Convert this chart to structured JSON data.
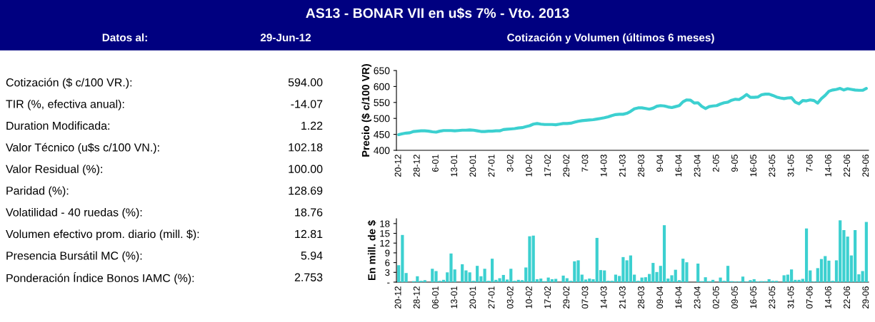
{
  "chart_data": [
    {
      "type": "other",
      "title": "AS13 - BONAR VII en u$s 7% - Vto. 2013",
      "annotations": [
        "Datos al:",
        "29-Jun-12",
        "Cotización ($ c/100 VR.):",
        "594.00",
        "TIR (%, efectiva anual):",
        "-14.07",
        "Duration Modificada:",
        "1.22",
        "Valor Técnico (u$s c/100 VN.):",
        "102.18",
        "Valor Residual (%):",
        "100.00",
        "Paridad (%):",
        "128.69",
        "Volatilidad - 40 ruedas (%):",
        "18.76",
        "Volumen efectivo prom. diario (mill. $):",
        "12.81",
        "Presencia Bursátil MC (%):",
        "5.94",
        "Ponderación Índice Bonos IAMC (%):",
        "2.753"
      ]
    },
    {
      "type": "line",
      "title": "Cotización y Volumen (últimos 6 meses)",
      "ylabel": "Precio ($ c/100 VR)",
      "categories": [
        "20-12",
        null,
        null,
        null,
        null,
        "28-12",
        null,
        null,
        null,
        null,
        "6-01",
        null,
        null,
        null,
        null,
        "13-01",
        null,
        null,
        null,
        null,
        "20-01",
        null,
        null,
        null,
        null,
        "27-01",
        null,
        null,
        null,
        null,
        "3-02",
        null,
        null,
        null,
        null,
        "10-02",
        null,
        null,
        null,
        null,
        "17-02",
        null,
        null,
        null,
        null,
        "29-02",
        null,
        null,
        null,
        null,
        "7-03",
        null,
        null,
        null,
        null,
        "14-03",
        null,
        null,
        null,
        null,
        "21-03",
        null,
        null,
        null,
        null,
        "28-03",
        null,
        null,
        null,
        null,
        "9-04",
        null,
        null,
        null,
        null,
        "16-04",
        null,
        null,
        null,
        null,
        "23-04",
        null,
        null,
        null,
        null,
        "2-05",
        null,
        null,
        null,
        null,
        "9-05",
        null,
        null,
        null,
        null,
        "16-05",
        null,
        null,
        null,
        null,
        "23-05",
        null,
        null,
        null,
        null,
        "31-05",
        null,
        null,
        null,
        null,
        "7-06",
        null,
        null,
        null,
        null,
        "14-06",
        null,
        null,
        null,
        null,
        "22-06",
        null,
        null,
        null,
        null,
        "29-06"
      ],
      "series": [
        {
          "color": "#3cd0d0",
          "values": [
            449,
            452,
            454,
            455,
            459,
            460,
            461,
            461,
            460,
            458,
            457,
            460,
            462,
            462,
            462,
            461,
            462,
            463,
            463,
            464,
            463,
            461,
            459,
            459,
            460,
            460,
            461,
            461,
            465,
            466,
            467,
            468,
            470,
            471,
            474,
            477,
            482,
            484,
            482,
            481,
            481,
            481,
            480,
            482,
            484,
            484,
            485,
            488,
            491,
            493,
            494,
            495,
            496,
            498,
            500,
            502,
            505,
            509,
            512,
            513,
            513,
            516,
            522,
            530,
            533,
            533,
            531,
            529,
            532,
            538,
            540,
            539,
            536,
            534,
            537,
            540,
            552,
            558,
            557,
            548,
            549,
            538,
            531,
            537,
            539,
            540,
            545,
            549,
            551,
            557,
            560,
            559,
            566,
            575,
            566,
            566,
            567,
            574,
            576,
            576,
            572,
            567,
            564,
            562,
            564,
            565,
            551,
            546,
            556,
            555,
            558,
            556,
            548,
            562,
            572,
            585,
            589,
            591,
            594,
            589,
            593,
            591,
            589,
            588,
            588,
            594
          ]
        }
      ],
      "ylim": [
        400,
        650
      ],
      "yticks": [
        400,
        450,
        500,
        550,
        600,
        650
      ],
      "grid": false,
      "legend": false,
      "marker": "none",
      "line_style": "solid"
    },
    {
      "type": "bar",
      "ylabel": "En mill. de $",
      "categories": [
        "20-12",
        null,
        null,
        null,
        null,
        "28-12",
        null,
        null,
        null,
        null,
        "06-01",
        null,
        null,
        null,
        null,
        "13-01",
        null,
        null,
        null,
        null,
        "20-01",
        null,
        null,
        null,
        null,
        "27-01",
        null,
        null,
        null,
        null,
        "03-02",
        null,
        null,
        null,
        null,
        "10-02",
        null,
        null,
        null,
        null,
        "17-02",
        null,
        null,
        null,
        null,
        "29-02",
        null,
        null,
        null,
        null,
        "07-03",
        null,
        null,
        null,
        null,
        "14-03",
        null,
        null,
        null,
        null,
        "21-03",
        null,
        null,
        null,
        null,
        "28-03",
        null,
        null,
        null,
        null,
        "09-04",
        null,
        null,
        null,
        null,
        "16-04",
        null,
        null,
        null,
        null,
        "23-04",
        null,
        null,
        null,
        null,
        "02-05",
        null,
        null,
        null,
        null,
        "09-05",
        null,
        null,
        null,
        null,
        "16-05",
        null,
        null,
        null,
        null,
        "23-05",
        null,
        null,
        null,
        null,
        "31-05",
        null,
        null,
        null,
        null,
        "07-06",
        null,
        null,
        null,
        null,
        "14-06",
        null,
        null,
        null,
        null,
        "22-06",
        null,
        null,
        null,
        null,
        "29-06"
      ],
      "series": [
        {
          "color": "#3cd0d0",
          "values": [
            5.2,
            14.5,
            2.8,
            0,
            0.3,
            1.8,
            0.4,
            0.6,
            0,
            4.1,
            3.4,
            0.4,
            0.7,
            3.0,
            8.8,
            3.9,
            0,
            5.5,
            3.6,
            3.0,
            0.4,
            5.0,
            1.8,
            4.1,
            0.4,
            7.2,
            0.7,
            1.2,
            2.2,
            0.8,
            4.1,
            0.4,
            0.7,
            0.6,
            4.5,
            14.1,
            14.3,
            0.9,
            1.1,
            0.3,
            1.4,
            0.9,
            1.0,
            0,
            2.0,
            1.2,
            0.4,
            6.4,
            6.7,
            2.3,
            0.8,
            1.1,
            0.9,
            13.6,
            3.7,
            3.6,
            0.4,
            0.4,
            2.3,
            1.9,
            7.7,
            6.7,
            8.2,
            2.3,
            0.4,
            1.4,
            1.5,
            2.5,
            5.9,
            3.1,
            5.0,
            17.5,
            1.1,
            2.1,
            3.8,
            0.6,
            7.2,
            6.1,
            0,
            0,
            5.7,
            0.3,
            1.5,
            0.3,
            0.7,
            0,
            1.4,
            0.4,
            5.0,
            0.3,
            0.2,
            0.2,
            1.7,
            0.2,
            0.6,
            0.9,
            0.2,
            0.3,
            0.3,
            0.9,
            0.4,
            0.4,
            0,
            2.1,
            2.3,
            3.9,
            0.7,
            0.7,
            1.0,
            16.5,
            3.6,
            0.2,
            4.3,
            7.1,
            8.0,
            6.6,
            0.4,
            6.7,
            19.0,
            16.0,
            14.0,
            8.2,
            16.0,
            2.4,
            3.4,
            18.5
          ]
        }
      ],
      "ylim": [
        0,
        19.5
      ],
      "yticks": [
        {
          "value": 0,
          "label": "-"
        },
        3,
        6,
        9,
        12,
        15,
        18
      ],
      "grid": false,
      "legend": false
    }
  ]
}
